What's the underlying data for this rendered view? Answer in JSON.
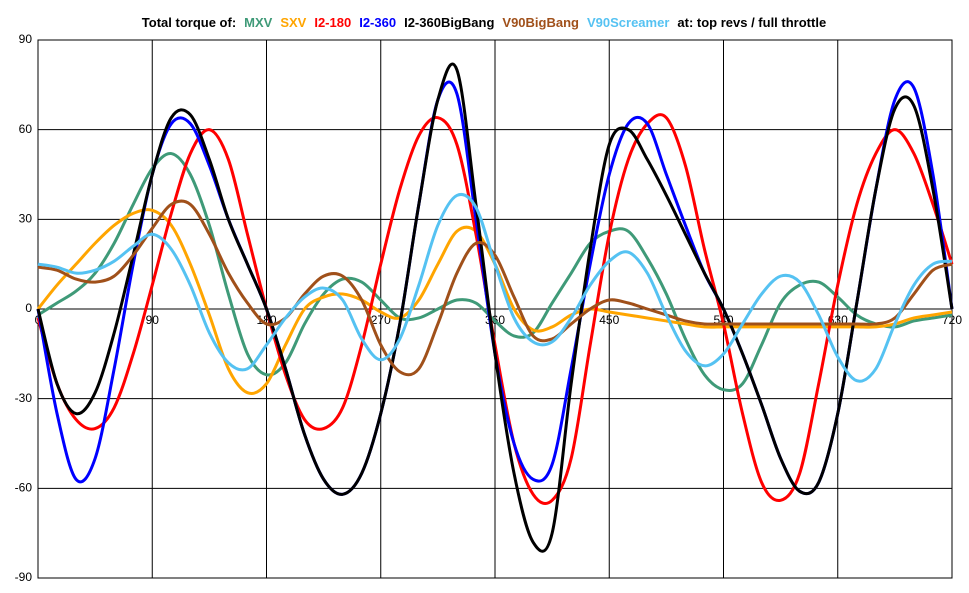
{
  "chart_data": {
    "type": "line",
    "title_start": "Total torque of:",
    "title_end": "at: top revs / full throttle",
    "x": [
      0,
      15,
      30,
      45,
      60,
      75,
      90,
      105,
      120,
      135,
      150,
      165,
      180,
      195,
      210,
      225,
      240,
      255,
      270,
      285,
      300,
      315,
      330,
      345,
      360,
      375,
      390,
      405,
      420,
      435,
      450,
      465,
      480,
      495,
      510,
      525,
      540,
      555,
      570,
      585,
      600,
      615,
      630,
      645,
      660,
      675,
      690,
      705,
      720
    ],
    "xlim": [
      0,
      720
    ],
    "xticks": [
      0,
      90,
      180,
      270,
      360,
      450,
      540,
      630,
      720
    ],
    "ylim": [
      -90,
      90
    ],
    "yticks": [
      -90,
      -60,
      -30,
      0,
      30,
      60,
      90
    ],
    "grid": true,
    "series": [
      {
        "name": "MXV",
        "color": "#3f9a78",
        "values": [
          -2,
          2,
          6,
          12,
          22,
          35,
          47,
          52,
          45,
          28,
          5,
          -15,
          -22,
          -18,
          -5,
          5,
          10,
          9,
          3,
          -3,
          -3,
          0,
          3,
          2,
          -4,
          -9,
          -8,
          2,
          12,
          22,
          26,
          26,
          17,
          5,
          -10,
          -22,
          -27,
          -25,
          -12,
          2,
          8,
          9,
          4,
          -2,
          -5,
          -6,
          -4,
          -3,
          -2
        ]
      },
      {
        "name": "SXV",
        "color": "#ffa500",
        "values": [
          0,
          8,
          15,
          22,
          28,
          32,
          33,
          28,
          15,
          -2,
          -20,
          -28,
          -25,
          -12,
          0,
          4,
          5,
          3,
          -1,
          -3,
          3,
          15,
          26,
          26,
          15,
          0,
          -7,
          -6,
          -2,
          0,
          -1,
          -2,
          -3,
          -4,
          -5,
          -6,
          -6,
          -6,
          -6,
          -6,
          -6,
          -6,
          -6,
          -6,
          -6,
          -5,
          -3,
          -2,
          -1
        ]
      },
      {
        "name": "I2-180",
        "color": "#ff0000",
        "values": [
          -3,
          -25,
          -37,
          -40,
          -33,
          -15,
          8,
          32,
          52,
          60,
          50,
          25,
          0,
          -22,
          -37,
          -40,
          -33,
          -12,
          15,
          40,
          58,
          64,
          55,
          25,
          -12,
          -45,
          -62,
          -64,
          -50,
          -12,
          25,
          50,
          62,
          64,
          48,
          20,
          -5,
          -35,
          -58,
          -64,
          -55,
          -25,
          8,
          35,
          52,
          60,
          52,
          35,
          15
        ]
      },
      {
        "name": "I2-360",
        "color": "#0000ff",
        "values": [
          0,
          -35,
          -57,
          -50,
          -20,
          15,
          45,
          62,
          62,
          48,
          30,
          15,
          0,
          -20,
          -42,
          -57,
          -62,
          -55,
          -35,
          -5,
          35,
          70,
          72,
          30,
          -15,
          -45,
          -57,
          -52,
          -20,
          15,
          45,
          62,
          62,
          45,
          28,
          12,
          0,
          -15,
          -32,
          -50,
          -61,
          -58,
          -35,
          2,
          40,
          70,
          74,
          45,
          0
        ]
      },
      {
        "name": "I2-360BigBang",
        "color": "#000000",
        "values": [
          0,
          -25,
          -35,
          -28,
          -8,
          18,
          45,
          64,
          65,
          50,
          30,
          15,
          0,
          -20,
          -42,
          -57,
          -62,
          -55,
          -35,
          -5,
          35,
          70,
          80,
          35,
          -15,
          -55,
          -78,
          -75,
          -25,
          20,
          55,
          60,
          50,
          38,
          25,
          12,
          0,
          -15,
          -32,
          -50,
          -61,
          -58,
          -35,
          2,
          40,
          67,
          68,
          40,
          0
        ]
      },
      {
        "name": "V90BigBang",
        "color": "#a0501a",
        "values": [
          14,
          13,
          10,
          9,
          11,
          18,
          27,
          35,
          35,
          25,
          12,
          2,
          -5,
          -3,
          5,
          11,
          11,
          3,
          -12,
          -21,
          -20,
          -5,
          12,
          22,
          18,
          4,
          -9,
          -10,
          -5,
          0,
          3,
          2,
          0,
          -2,
          -4,
          -5,
          -5,
          -5,
          -5,
          -5,
          -5,
          -5,
          -5,
          -5,
          -5,
          -3,
          5,
          13,
          15
        ]
      },
      {
        "name": "V90Screamer",
        "color": "#55c2f2",
        "values": [
          15,
          14,
          12,
          13,
          16,
          21,
          25,
          20,
          8,
          -8,
          -18,
          -20,
          -12,
          -3,
          4,
          7,
          3,
          -10,
          -17,
          -10,
          8,
          28,
          38,
          34,
          15,
          -3,
          -11,
          -11,
          -3,
          8,
          16,
          19,
          12,
          -2,
          -14,
          -19,
          -15,
          -5,
          5,
          11,
          9,
          -2,
          -16,
          -24,
          -20,
          -5,
          8,
          15,
          16
        ]
      }
    ]
  }
}
